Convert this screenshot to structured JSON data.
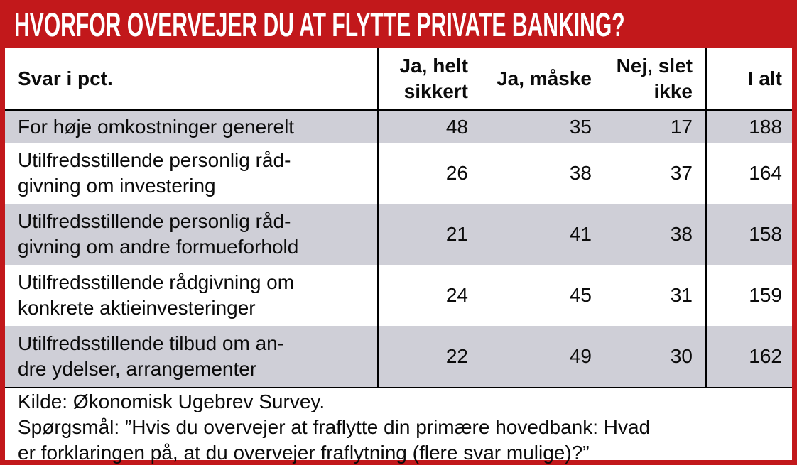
{
  "title": "HVORFOR OVERVEJER DU AT FLYTTE PRIVATE BANKING?",
  "colors": {
    "accent_red": "#c2181b",
    "row_alt_gray": "#cfcfd7",
    "grid_black": "#000000"
  },
  "table": {
    "header": {
      "col_label": "Svar i pct.",
      "col_yes_certain": "Ja, helt\nsikkert",
      "col_yes_maybe": "Ja, måske",
      "col_no": "Nej, slet\nikke",
      "col_total": "I alt"
    },
    "rows": [
      {
        "label": "For høje omkostninger generelt",
        "yes_certain": "48",
        "yes_maybe": "35",
        "no": "17",
        "total": "188"
      },
      {
        "label": "Utilfredsstillende personlig råd-\ngivning om investering",
        "yes_certain": "26",
        "yes_maybe": "38",
        "no": "37",
        "total": "164"
      },
      {
        "label": "Utilfredsstillende personlig råd-\ngivning om andre formueforhold",
        "yes_certain": "21",
        "yes_maybe": "41",
        "no": "38",
        "total": "158"
      },
      {
        "label": "Utilfredsstillende rådgivning om\nkonkrete aktieinvesteringer",
        "yes_certain": "24",
        "yes_maybe": "45",
        "no": "31",
        "total": "159"
      },
      {
        "label": "Utilfredsstillende tilbud om an-\ndre ydelser, arrangementer",
        "yes_certain": "22",
        "yes_maybe": "49",
        "no": "30",
        "total": "162"
      }
    ]
  },
  "footer": {
    "source": "Kilde: Økonomisk Ugebrev Survey.",
    "question": "Spørgsmål: ”Hvis du overvejer at fraflytte din primære hovedbank: Hvad\ner forklaringen på, at du overvejer fraflytning (flere svar mulige)?”"
  }
}
